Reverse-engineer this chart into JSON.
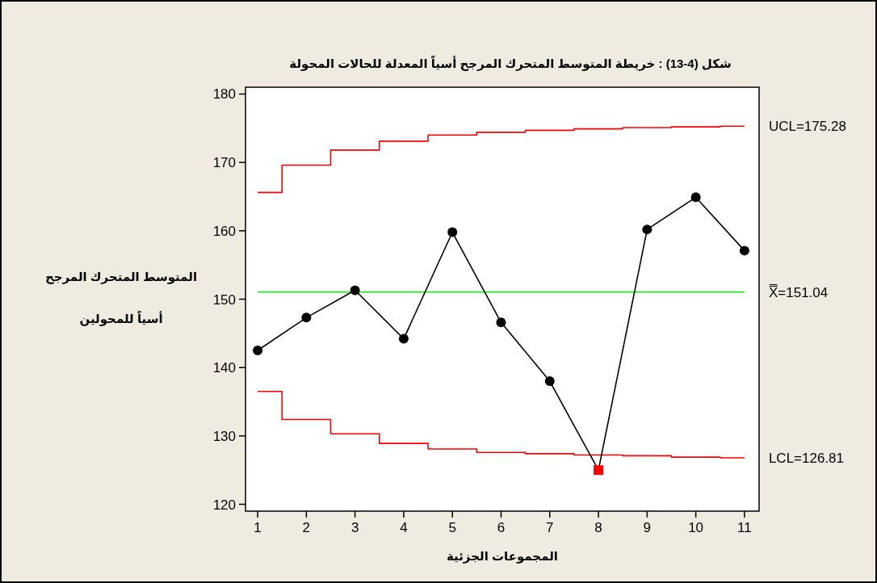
{
  "chart_data": {
    "type": "line",
    "title": "شكل (4-13) : خريطة المتوسط المتحرك المرجح أسياً المعدلة للحالات المحولة",
    "xlabel": "المجموعات الجزئية",
    "ylabel": "المتوسط المتحرك المرجح\nأسياً للمحولين",
    "x": [
      1,
      2,
      3,
      4,
      5,
      6,
      7,
      8,
      9,
      10,
      11
    ],
    "xlim": [
      0.75,
      11.3
    ],
    "xticks": [
      1,
      2,
      3,
      4,
      5,
      6,
      7,
      8,
      9,
      10,
      11
    ],
    "ylim": [
      119,
      181
    ],
    "yticks": [
      120,
      130,
      140,
      150,
      160,
      170,
      180
    ],
    "grid": false,
    "series": [
      {
        "type": "step",
        "color": "#ff0000",
        "marker": "none",
        "values": [
          165.6,
          169.6,
          171.8,
          173.1,
          174.0,
          174.4,
          174.7,
          174.9,
          175.1,
          175.2,
          175.3
        ]
      },
      {
        "type": "step",
        "color": "#ff0000",
        "marker": "none",
        "values": [
          136.5,
          132.4,
          130.3,
          128.9,
          128.1,
          127.6,
          127.4,
          127.2,
          127.1,
          126.9,
          126.8
        ]
      },
      {
        "color": "#000000",
        "marker": "none",
        "values": [
          142.5,
          147.3,
          151.3,
          144.2,
          159.8,
          146.6,
          138.0,
          125.0,
          160.2,
          164.9,
          157.1
        ]
      },
      {
        "type": "scatter",
        "color": "#000000",
        "marker": "circle",
        "values": [
          142.5,
          147.3,
          151.3,
          144.2,
          159.8,
          146.6,
          138.0,
          null,
          160.2,
          164.9,
          157.1
        ]
      },
      {
        "type": "scatter",
        "color": "#ff0000",
        "marker": "square",
        "values": [
          null,
          null,
          null,
          null,
          null,
          null,
          null,
          125.0,
          null,
          null,
          null
        ]
      }
    ],
    "ref_lines": [
      {
        "axis": "y",
        "value": 151.04,
        "label": "X̿=151.04",
        "color": "#00ff00"
      }
    ],
    "annotations": [
      {
        "text": "UCL=175.28",
        "x": 11,
        "y": 175.28
      },
      {
        "text": "LCL=126.81",
        "x": 11,
        "y": 126.81
      }
    ]
  }
}
